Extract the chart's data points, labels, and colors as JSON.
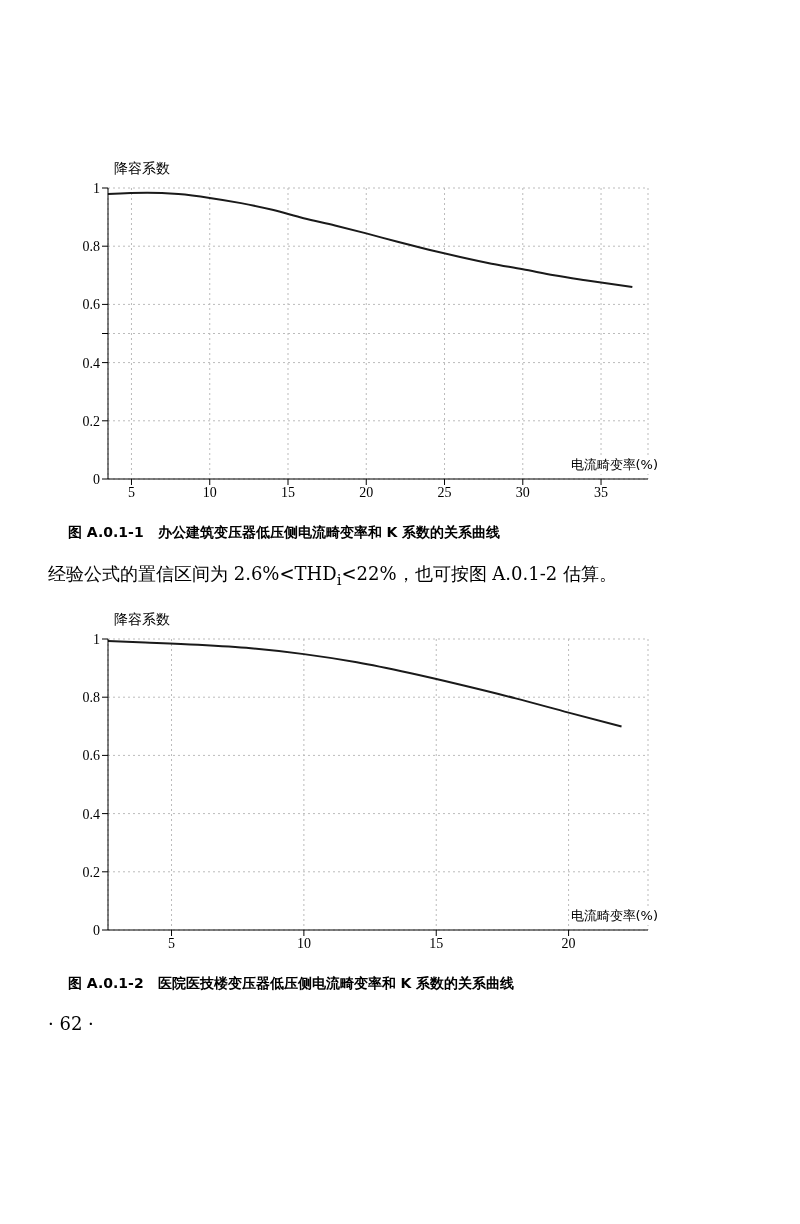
{
  "chart_data": [
    {
      "type": "line",
      "title": "图 A.0.1-1　办公建筑变压器低压侧电流畸变率和 K 系数的关系曲线",
      "xlabel": "电流畸变率(%)",
      "ylabel": "降容系数",
      "x": [
        3.5,
        6,
        8,
        10,
        12,
        14,
        16,
        18,
        20,
        22,
        24,
        26,
        28,
        30,
        32,
        34,
        37
      ],
      "series": [
        {
          "color": "#1a1a1a",
          "values": [
            0.979,
            0.984,
            0.979,
            0.966,
            0.948,
            0.925,
            0.896,
            0.871,
            0.844,
            0.815,
            0.788,
            0.763,
            0.74,
            0.721,
            0.7,
            0.683,
            0.66
          ]
        }
      ],
      "xlim": [
        3.5,
        38
      ],
      "xticks": [
        5,
        10,
        15,
        20,
        25,
        30,
        35
      ],
      "ylim": [
        0,
        1
      ],
      "yticks": [
        0,
        0.2,
        0.4,
        {
          "value": 0.5,
          "label": null
        },
        0.6,
        0.8,
        1
      ],
      "grid": true,
      "annotations": [
        "经验公式的置信区间为 2.6%<THD$_{i}$<22%，也可按图 A.0.1-2 估算。"
      ]
    },
    {
      "type": "line",
      "title": "图 A.0.1-2　医院医技楼变压器低压侧电流畸变率和 K 系数的关系曲线",
      "xlabel": "电流畸变率(%)",
      "ylabel": "降容系数",
      "x": [
        2.6,
        4,
        6,
        8,
        10,
        12,
        14,
        16,
        18,
        20,
        22
      ],
      "series": [
        {
          "color": "#1a1a1a",
          "values": [
            0.993,
            0.988,
            0.98,
            0.968,
            0.948,
            0.92,
            0.883,
            0.841,
            0.796,
            0.747,
            0.699
          ]
        }
      ],
      "xlim": [
        2.6,
        23
      ],
      "xticks": [
        5,
        10,
        15,
        20
      ],
      "ylim": [
        0,
        1
      ],
      "yticks": [
        0,
        0.2,
        0.4,
        0.6,
        0.8,
        1
      ],
      "grid": true,
      "annotations": [
        "· 62 ·"
      ]
    }
  ]
}
